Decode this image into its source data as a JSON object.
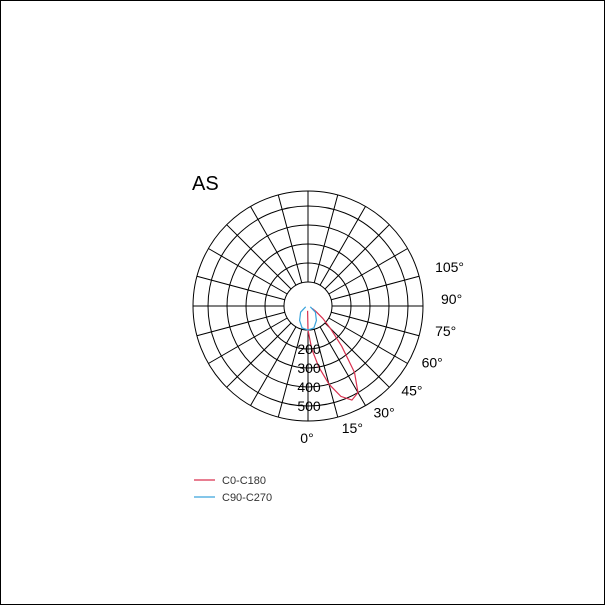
{
  "chart_data": {
    "type": "polar",
    "title": "AS",
    "radial_ticks": [
      "200",
      "300",
      "400",
      "500"
    ],
    "radial_values": [
      200,
      300,
      400,
      500
    ],
    "angle_ticks": [
      "0°",
      "15°",
      "30°",
      "45°",
      "60°",
      "75°",
      "90°",
      "105°"
    ],
    "angle_values": [
      0,
      15,
      30,
      45,
      60,
      75,
      90,
      105
    ],
    "grid": true,
    "legend_position": "bottom-left",
    "series": [
      {
        "name": "C0-C180",
        "color": "#d9304f",
        "points": [
          [
            -5,
            20
          ],
          [
            0,
            100
          ],
          [
            5,
            200
          ],
          [
            10,
            300
          ],
          [
            15,
            400
          ],
          [
            20,
            480
          ],
          [
            25,
            520
          ],
          [
            30,
            500
          ],
          [
            35,
            400
          ],
          [
            40,
            250
          ],
          [
            45,
            140
          ],
          [
            50,
            80
          ],
          [
            55,
            40
          ],
          [
            60,
            20
          ]
        ]
      },
      {
        "name": "C90-C270",
        "color": "#3aa3dc",
        "points": [
          [
            -70,
            10
          ],
          [
            -50,
            40
          ],
          [
            -30,
            70
          ],
          [
            -15,
            95
          ],
          [
            0,
            100
          ],
          [
            15,
            95
          ],
          [
            30,
            70
          ],
          [
            50,
            40
          ],
          [
            70,
            10
          ]
        ]
      }
    ]
  }
}
